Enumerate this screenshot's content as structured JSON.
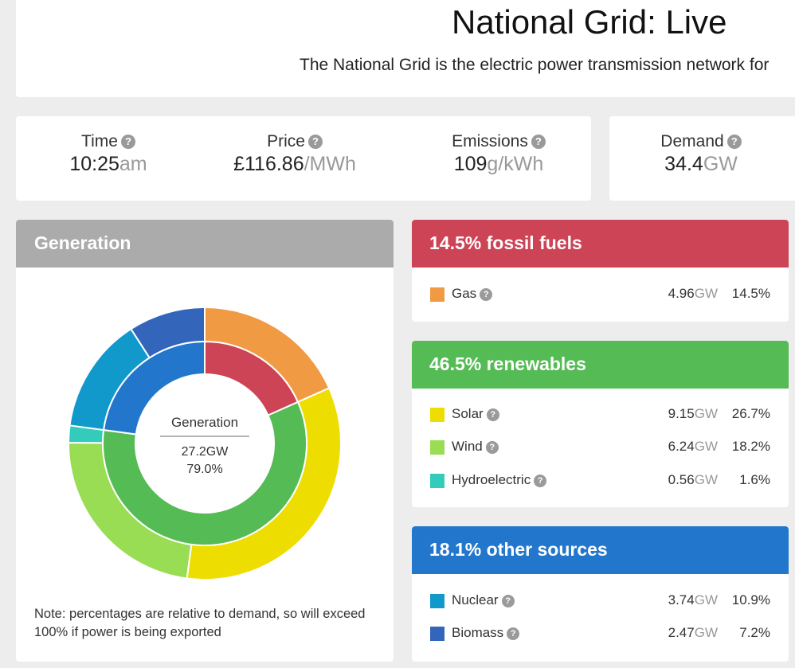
{
  "header": {
    "title": "National Grid: Live",
    "subtitle": "The National Grid is the electric power transmission network for"
  },
  "stats": [
    {
      "label": "Time",
      "value": "10:25",
      "unit": "am"
    },
    {
      "label": "Price",
      "value": "£116.86",
      "unit": "/MWh"
    },
    {
      "label": "Emissions",
      "value": "109",
      "unit": "g/kWh"
    },
    {
      "label": "Demand",
      "value": "34.4",
      "unit": "GW"
    }
  ],
  "help_glyph": "?",
  "generation": {
    "title": "Generation",
    "center_label": "Generation",
    "center_gw": "27.2GW",
    "center_pct": "79.0%",
    "note": "Note: percentages are relative to demand, so will exceed 100% if power is being exported"
  },
  "categories": [
    {
      "title": "14.5% fossil fuels",
      "color": "#cc4455",
      "ring_pct": 14.5,
      "sources": [
        {
          "name": "Gas",
          "gw": "4.96",
          "pct": "14.5%",
          "pct_value": 14.5,
          "color": "#f09a44"
        }
      ]
    },
    {
      "title": "46.5% renewables",
      "color": "#55bb55",
      "ring_pct": 46.5,
      "sources": [
        {
          "name": "Solar",
          "gw": "9.15",
          "pct": "26.7%",
          "pct_value": 26.7,
          "color": "#eedd00"
        },
        {
          "name": "Wind",
          "gw": "6.24",
          "pct": "18.2%",
          "pct_value": 18.2,
          "color": "#99dd55"
        },
        {
          "name": "Hydroelectric",
          "gw": "0.56",
          "pct": "1.6%",
          "pct_value": 1.6,
          "color": "#33ccbb"
        }
      ]
    },
    {
      "title": "18.1% other sources",
      "color": "#2277cc",
      "ring_pct": 18.1,
      "sources": [
        {
          "name": "Nuclear",
          "gw": "3.74",
          "pct": "10.9%",
          "pct_value": 10.9,
          "color": "#1199cc"
        },
        {
          "name": "Biomass",
          "gw": "2.47",
          "pct": "7.2%",
          "pct_value": 7.2,
          "color": "#3366bb"
        }
      ]
    }
  ],
  "gw_unit": "GW"
}
